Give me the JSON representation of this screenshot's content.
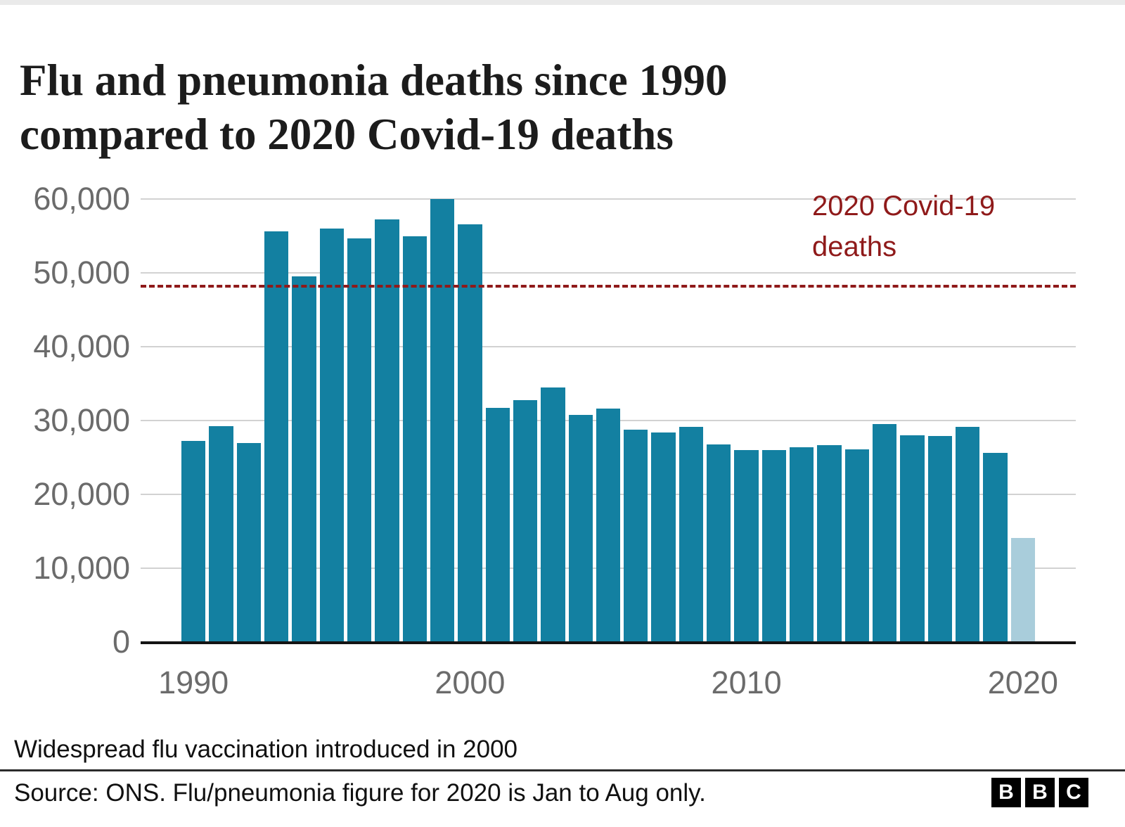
{
  "title": {
    "line1": "Flu and pneumonia deaths since 1990",
    "line2": "compared to 2020 Covid-19 deaths"
  },
  "chart_data": {
    "type": "bar",
    "title": "Flu and pneumonia deaths since 1990 compared to 2020 Covid-19 deaths",
    "categories": [
      1990,
      1991,
      1992,
      1993,
      1994,
      1995,
      1996,
      1997,
      1998,
      1999,
      2000,
      2001,
      2002,
      2003,
      2004,
      2005,
      2006,
      2007,
      2008,
      2009,
      2010,
      2011,
      2012,
      2013,
      2014,
      2015,
      2016,
      2017,
      2018,
      2019,
      2020
    ],
    "values": [
      27200,
      29200,
      27000,
      55600,
      49500,
      56000,
      54700,
      57200,
      55000,
      60000,
      56600,
      31700,
      32800,
      34500,
      30800,
      31600,
      28800,
      28400,
      29100,
      26800,
      26000,
      26000,
      26400,
      26700,
      26100,
      29500,
      28000,
      27900,
      29100,
      25600,
      14100
    ],
    "ylim": [
      0,
      60000
    ],
    "yticks": [
      0,
      10000,
      20000,
      30000,
      40000,
      50000,
      60000
    ],
    "ytick_labels": [
      "0",
      "10,000",
      "20,000",
      "30,000",
      "40,000",
      "50,000",
      "60,000"
    ],
    "xticks": [
      {
        "label": "1990",
        "bar_index": 0
      },
      {
        "label": "2000",
        "bar_index": 10
      },
      {
        "label": "2010",
        "bar_index": 20
      },
      {
        "label": "2020",
        "bar_index": 30
      }
    ],
    "bar_color": "#1380A1",
    "highlight": {
      "bar_index": 30,
      "color": "#a9cddb"
    },
    "reference_line": {
      "value": 48200,
      "color": "#8f1a1a",
      "style": "dashed",
      "label_line1": "2020 Covid-19",
      "label_line2": "deaths"
    },
    "grid": true,
    "legend_position": "none"
  },
  "annotation": "Widespread flu vaccination introduced in 2000",
  "footer": {
    "source": "Source: ONS. Flu/pneumonia figure for 2020 is Jan to Aug only.",
    "logo_letters": [
      "B",
      "B",
      "C"
    ]
  }
}
